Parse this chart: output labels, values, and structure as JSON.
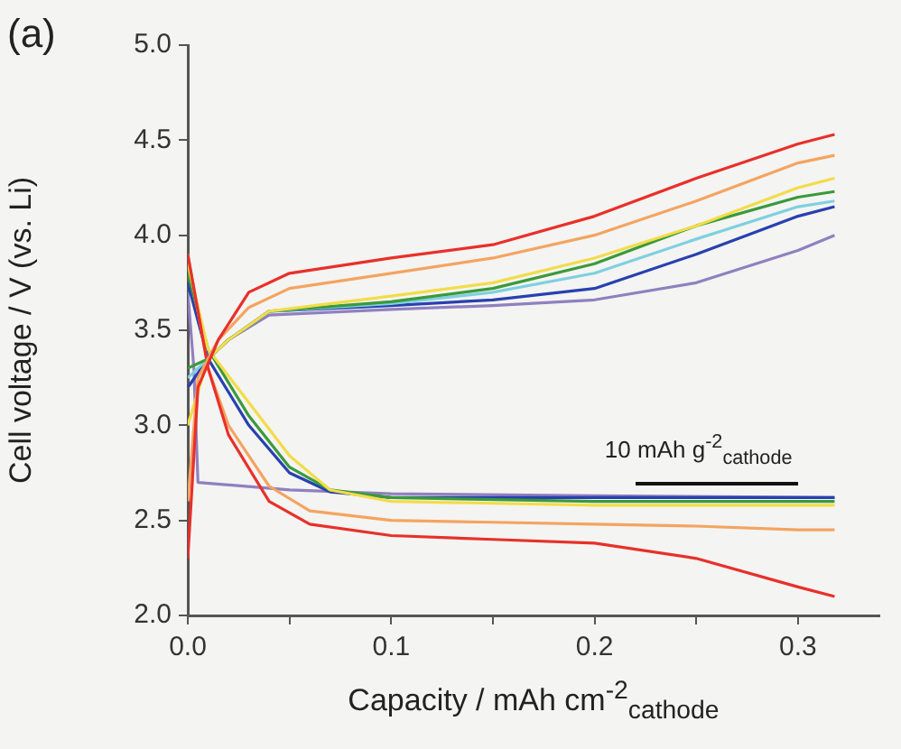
{
  "chart_data": {
    "type": "line",
    "xlabel": "Capacity / mAh cm$^{-2}$$_{cathode}$",
    "ylabel": "Cell voltage / V (vs. Li)",
    "annotations": [
      "(a)",
      "10 mAh g$^{-2}$$_{cathode}$"
    ],
    "xlim": [
      0,
      0.34
    ],
    "xticks": [
      {
        "value": 0,
        "label": "0.0"
      },
      {
        "value": 0.05,
        "label": null
      },
      {
        "value": 0.1,
        "label": "0.1"
      },
      {
        "value": 0.15,
        "label": null
      },
      {
        "value": 0.2,
        "label": "0.2"
      },
      {
        "value": 0.25,
        "label": null
      },
      {
        "value": 0.3,
        "label": "0.3"
      }
    ],
    "ylim": [
      2.0,
      5.0
    ],
    "yticks": [
      {
        "value": 2,
        "label": "2.0"
      },
      {
        "value": 2.5,
        "label": "2.5"
      },
      {
        "value": 3,
        "label": "3.0"
      },
      {
        "value": 3.5,
        "label": "3.5"
      },
      {
        "value": 4,
        "label": "4.0"
      },
      {
        "value": 4.5,
        "label": "4.5"
      },
      {
        "value": 5,
        "label": "5.0"
      }
    ],
    "grid": false,
    "legend": false,
    "marker": "none",
    "line_style": "solid",
    "series": [
      {
        "color": "#e8302a",
        "x": [
          0,
          0.005,
          0.015,
          0.03,
          0.05,
          0.1,
          0.15,
          0.2,
          0.25,
          0.3,
          0.318
        ],
        "values": [
          2.3,
          3.2,
          3.45,
          3.7,
          3.8,
          3.88,
          3.95,
          4.1,
          4.3,
          4.48,
          4.53
        ]
      },
      {
        "color": "#f4a460",
        "x": [
          0,
          0.005,
          0.015,
          0.03,
          0.05,
          0.1,
          0.15,
          0.2,
          0.25,
          0.3,
          0.318
        ],
        "values": [
          2.6,
          3.25,
          3.45,
          3.62,
          3.72,
          3.8,
          3.88,
          4.0,
          4.18,
          4.38,
          4.42
        ]
      },
      {
        "color": "#f2dc4a",
        "x": [
          0,
          0.01,
          0.02,
          0.04,
          0.1,
          0.15,
          0.2,
          0.25,
          0.3,
          0.318
        ],
        "values": [
          3.0,
          3.35,
          3.45,
          3.6,
          3.68,
          3.75,
          3.88,
          4.05,
          4.25,
          4.3
        ]
      },
      {
        "color": "#3a9a3a",
        "x": [
          0,
          0.01,
          0.02,
          0.04,
          0.1,
          0.15,
          0.2,
          0.25,
          0.3,
          0.318
        ],
        "values": [
          3.3,
          3.35,
          3.45,
          3.6,
          3.65,
          3.72,
          3.85,
          4.05,
          4.2,
          4.23
        ]
      },
      {
        "color": "#7fd0e0",
        "x": [
          0,
          0.01,
          0.02,
          0.04,
          0.1,
          0.15,
          0.2,
          0.25,
          0.3,
          0.318
        ],
        "values": [
          3.25,
          3.35,
          3.45,
          3.6,
          3.64,
          3.7,
          3.8,
          3.98,
          4.15,
          4.18
        ]
      },
      {
        "color": "#2840b0",
        "x": [
          0,
          0.01,
          0.02,
          0.04,
          0.1,
          0.15,
          0.2,
          0.25,
          0.3,
          0.318
        ],
        "values": [
          3.2,
          3.35,
          3.45,
          3.6,
          3.63,
          3.66,
          3.72,
          3.9,
          4.1,
          4.15
        ]
      },
      {
        "color": "#9080c0",
        "x": [
          0,
          0.01,
          0.02,
          0.04,
          0.1,
          0.15,
          0.2,
          0.25,
          0.3,
          0.318
        ],
        "values": [
          3.2,
          3.35,
          3.45,
          3.58,
          3.61,
          3.63,
          3.66,
          3.75,
          3.92,
          4.0
        ]
      },
      {
        "color": "#e8302a",
        "x": [
          0,
          0.01,
          0.02,
          0.04,
          0.06,
          0.1,
          0.15,
          0.2,
          0.25,
          0.3,
          0.318
        ],
        "values": [
          3.9,
          3.3,
          2.95,
          2.6,
          2.48,
          2.42,
          2.4,
          2.38,
          2.3,
          2.15,
          2.1
        ]
      },
      {
        "color": "#f4a460",
        "x": [
          0,
          0.01,
          0.02,
          0.04,
          0.06,
          0.1,
          0.15,
          0.2,
          0.25,
          0.3,
          0.318
        ],
        "values": [
          3.9,
          3.3,
          3.0,
          2.68,
          2.55,
          2.5,
          2.49,
          2.48,
          2.47,
          2.45,
          2.45
        ]
      },
      {
        "color": "#f2dc4a",
        "x": [
          0,
          0.01,
          0.03,
          0.05,
          0.07,
          0.1,
          0.2,
          0.318
        ],
        "values": [
          3.85,
          3.4,
          3.12,
          2.84,
          2.66,
          2.6,
          2.58,
          2.58
        ]
      },
      {
        "color": "#3a9a3a",
        "x": [
          0,
          0.01,
          0.03,
          0.05,
          0.07,
          0.1,
          0.2,
          0.318
        ],
        "values": [
          3.8,
          3.4,
          3.05,
          2.78,
          2.66,
          2.62,
          2.6,
          2.6
        ]
      },
      {
        "color": "#2840b0",
        "x": [
          0,
          0.01,
          0.03,
          0.05,
          0.07,
          0.1,
          0.2,
          0.318
        ],
        "values": [
          3.75,
          3.35,
          3.0,
          2.75,
          2.65,
          2.62,
          2.62,
          2.62
        ]
      },
      {
        "color": "#9080c0",
        "x": [
          0,
          0.003,
          0.005,
          0.05,
          0.1,
          0.2,
          0.318
        ],
        "values": [
          3.7,
          3.3,
          2.7,
          2.66,
          2.64,
          2.63,
          2.62
        ]
      }
    ]
  }
}
